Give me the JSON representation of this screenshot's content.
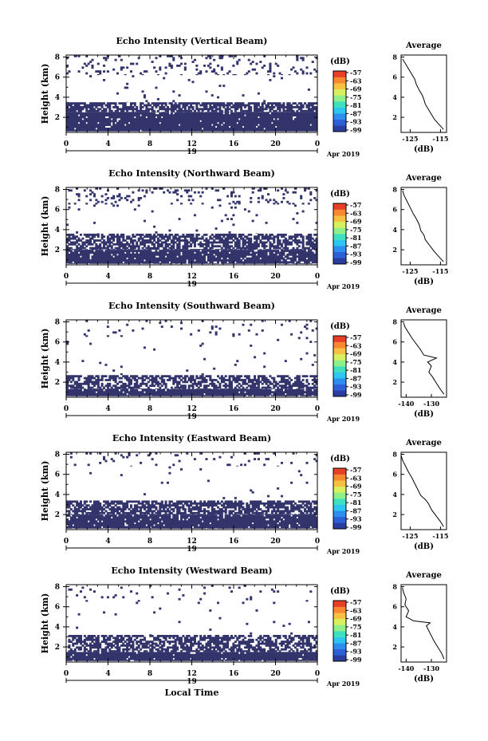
{
  "colors": {
    "fill": "#32346b",
    "background": "#ffffff",
    "colorbar": [
      "#2c3da0",
      "#2d5fd8",
      "#2d8ef0",
      "#2cc6f0",
      "#3fe0c0",
      "#8ff08a",
      "#d8f060",
      "#f8c040",
      "#f88830",
      "#e84028"
    ]
  },
  "icons": [
    "axis-ticks"
  ],
  "shared": {
    "xlabel": "Local Time",
    "xticks": [
      "0",
      "4",
      "8",
      "12",
      "16",
      "20",
      "0"
    ],
    "date_day": "19",
    "date_label": "Apr 2019",
    "ylabel": "Height (km)",
    "yticks": [
      "2",
      "4",
      "6",
      "8"
    ],
    "cbar_unit": "(dB)",
    "cbar_ticks": [
      "-57",
      "-63",
      "-69",
      "-75",
      "-81",
      "-87",
      "-93",
      "-99"
    ],
    "profile_title": "Average",
    "profile_xlabel": "(dB)",
    "profile_yticks": [
      "2",
      "4",
      "6",
      "8"
    ]
  },
  "chart_data": [
    {
      "type": "heatmap",
      "title": "Echo Intensity (Vertical Beam)",
      "xlabel": "Local Time",
      "ylabel": "Height (km)",
      "xlim": [
        0,
        24
      ],
      "ylim": [
        0.5,
        8.2
      ],
      "colorbar": {
        "label": "(dB)",
        "range": [
          -99,
          -57
        ]
      },
      "layers": [
        {
          "from": 0.6,
          "to": 2.5,
          "density": 0.96
        },
        {
          "from": 2.5,
          "to": 3.5,
          "density": 0.72
        },
        {
          "from": 3.5,
          "to": 6.2,
          "density": 0.015
        },
        {
          "from": 6.2,
          "to": 8.2,
          "density": 0.12
        }
      ],
      "profile": {
        "title": "Average",
        "xlabel": "(dB)",
        "xticks": [
          -125,
          -115
        ],
        "xlim": [
          -128,
          -113
        ],
        "points": [
          [
            -114,
            0.8
          ],
          [
            -115.5,
            1.3
          ],
          [
            -117,
            1.8
          ],
          [
            -118,
            2.3
          ],
          [
            -119,
            2.8
          ],
          [
            -120,
            3.3
          ],
          [
            -120.5,
            3.8
          ],
          [
            -121,
            4.2
          ],
          [
            -122,
            4.7
          ],
          [
            -123,
            5.3
          ],
          [
            -123.5,
            5.8
          ],
          [
            -124.5,
            6.3
          ],
          [
            -125.5,
            6.8
          ],
          [
            -126.5,
            7.3
          ],
          [
            -127.5,
            7.8
          ]
        ]
      }
    },
    {
      "type": "heatmap",
      "title": "Echo Intensity (Northward Beam)",
      "xlabel": "Local Time",
      "ylabel": "Height (km)",
      "xlim": [
        0,
        24
      ],
      "ylim": [
        0.5,
        8.2
      ],
      "colorbar": {
        "label": "(dB)",
        "range": [
          -99,
          -57
        ]
      },
      "layers": [
        {
          "from": 0.6,
          "to": 2.0,
          "density": 0.9
        },
        {
          "from": 2.0,
          "to": 3.6,
          "density": 0.66
        },
        {
          "from": 3.6,
          "to": 6.5,
          "density": 0.02
        },
        {
          "from": 6.5,
          "to": 8.2,
          "density": 0.12
        }
      ],
      "profile": {
        "title": "Average",
        "xlabel": "(dB)",
        "xticks": [
          -125,
          -115
        ],
        "xlim": [
          -128,
          -113
        ],
        "points": [
          [
            -114,
            0.8
          ],
          [
            -115.5,
            1.3
          ],
          [
            -117,
            1.8
          ],
          [
            -118.5,
            2.4
          ],
          [
            -120,
            3.0
          ],
          [
            -120.5,
            3.5
          ],
          [
            -121.5,
            3.9
          ],
          [
            -122,
            4.5
          ],
          [
            -123,
            5.1
          ],
          [
            -124,
            5.6
          ],
          [
            -125,
            6.2
          ],
          [
            -126,
            6.8
          ],
          [
            -127,
            7.4
          ],
          [
            -127.5,
            7.9
          ]
        ]
      }
    },
    {
      "type": "heatmap",
      "title": "Echo Intensity (Southward Beam)",
      "xlabel": "Local Time",
      "ylabel": "Height (km)",
      "xlim": [
        0,
        24
      ],
      "ylim": [
        0.5,
        8.2
      ],
      "colorbar": {
        "label": "(dB)",
        "range": [
          -99,
          -57
        ]
      },
      "layers": [
        {
          "from": 0.6,
          "to": 1.3,
          "density": 0.94
        },
        {
          "from": 1.3,
          "to": 2.7,
          "density": 0.6
        },
        {
          "from": 2.7,
          "to": 6.5,
          "density": 0.01
        },
        {
          "from": 6.5,
          "to": 8.2,
          "density": 0.04
        }
      ],
      "profile": {
        "title": "Average",
        "xlabel": "(dB)",
        "xticks": [
          -140,
          -130
        ],
        "xlim": [
          -142,
          -124
        ],
        "points": [
          [
            -125,
            0.8
          ],
          [
            -126.5,
            1.3
          ],
          [
            -128,
            1.9
          ],
          [
            -129.5,
            2.5
          ],
          [
            -131,
            3.0
          ],
          [
            -130,
            3.6
          ],
          [
            -131.5,
            4.0
          ],
          [
            -128,
            4.4
          ],
          [
            -133,
            4.7
          ],
          [
            -134.5,
            5.3
          ],
          [
            -136,
            5.8
          ],
          [
            -137.5,
            6.3
          ],
          [
            -139,
            6.9
          ],
          [
            -140.5,
            7.5
          ],
          [
            -141,
            7.9
          ]
        ]
      }
    },
    {
      "type": "heatmap",
      "title": "Echo Intensity (Eastward Beam)",
      "xlabel": "Local Time",
      "ylabel": "Height (km)",
      "xlim": [
        0,
        24
      ],
      "ylim": [
        0.5,
        8.2
      ],
      "colorbar": {
        "label": "(dB)",
        "range": [
          -99,
          -57
        ]
      },
      "layers": [
        {
          "from": 0.6,
          "to": 2.0,
          "density": 0.93
        },
        {
          "from": 2.0,
          "to": 3.4,
          "density": 0.7
        },
        {
          "from": 3.4,
          "to": 6.8,
          "density": 0.01
        },
        {
          "from": 6.8,
          "to": 8.2,
          "density": 0.07
        }
      ],
      "profile": {
        "title": "Average",
        "xlabel": "(dB)",
        "xticks": [
          -125,
          -115
        ],
        "xlim": [
          -128,
          -113
        ],
        "points": [
          [
            -114,
            0.8
          ],
          [
            -115,
            1.3
          ],
          [
            -116.5,
            1.9
          ],
          [
            -118,
            2.5
          ],
          [
            -119,
            3.1
          ],
          [
            -120,
            3.5
          ],
          [
            -121.5,
            3.9
          ],
          [
            -122.5,
            4.5
          ],
          [
            -123.5,
            5.1
          ],
          [
            -124.5,
            5.7
          ],
          [
            -125.5,
            6.2
          ],
          [
            -126.5,
            6.8
          ],
          [
            -127.5,
            7.4
          ],
          [
            -128,
            7.9
          ]
        ]
      }
    },
    {
      "type": "heatmap",
      "title": "Echo Intensity (Westward Beam)",
      "xlabel": "Local Time",
      "ylabel": "Height (km)",
      "xlim": [
        0,
        24
      ],
      "ylim": [
        0.5,
        8.2
      ],
      "colorbar": {
        "label": "(dB)",
        "range": [
          -99,
          -57
        ]
      },
      "layers": [
        {
          "from": 0.6,
          "to": 1.5,
          "density": 0.95
        },
        {
          "from": 1.5,
          "to": 3.2,
          "density": 0.62
        },
        {
          "from": 3.2,
          "to": 6.5,
          "density": 0.01
        },
        {
          "from": 6.5,
          "to": 8.2,
          "density": 0.03
        }
      ],
      "profile": {
        "title": "Average",
        "xlabel": "(dB)",
        "xticks": [
          -140,
          -130
        ],
        "xlim": [
          -142,
          -124
        ],
        "points": [
          [
            -125,
            0.8
          ],
          [
            -126,
            1.4
          ],
          [
            -127.5,
            2.0
          ],
          [
            -129,
            2.6
          ],
          [
            -130,
            3.1
          ],
          [
            -131,
            3.6
          ],
          [
            -132,
            4.1
          ],
          [
            -130.5,
            4.4
          ],
          [
            -137,
            4.6
          ],
          [
            -140,
            5.0
          ],
          [
            -139,
            5.6
          ],
          [
            -140.5,
            6.2
          ],
          [
            -140,
            6.8
          ],
          [
            -141,
            7.4
          ],
          [
            -141.5,
            7.9
          ]
        ]
      }
    }
  ]
}
